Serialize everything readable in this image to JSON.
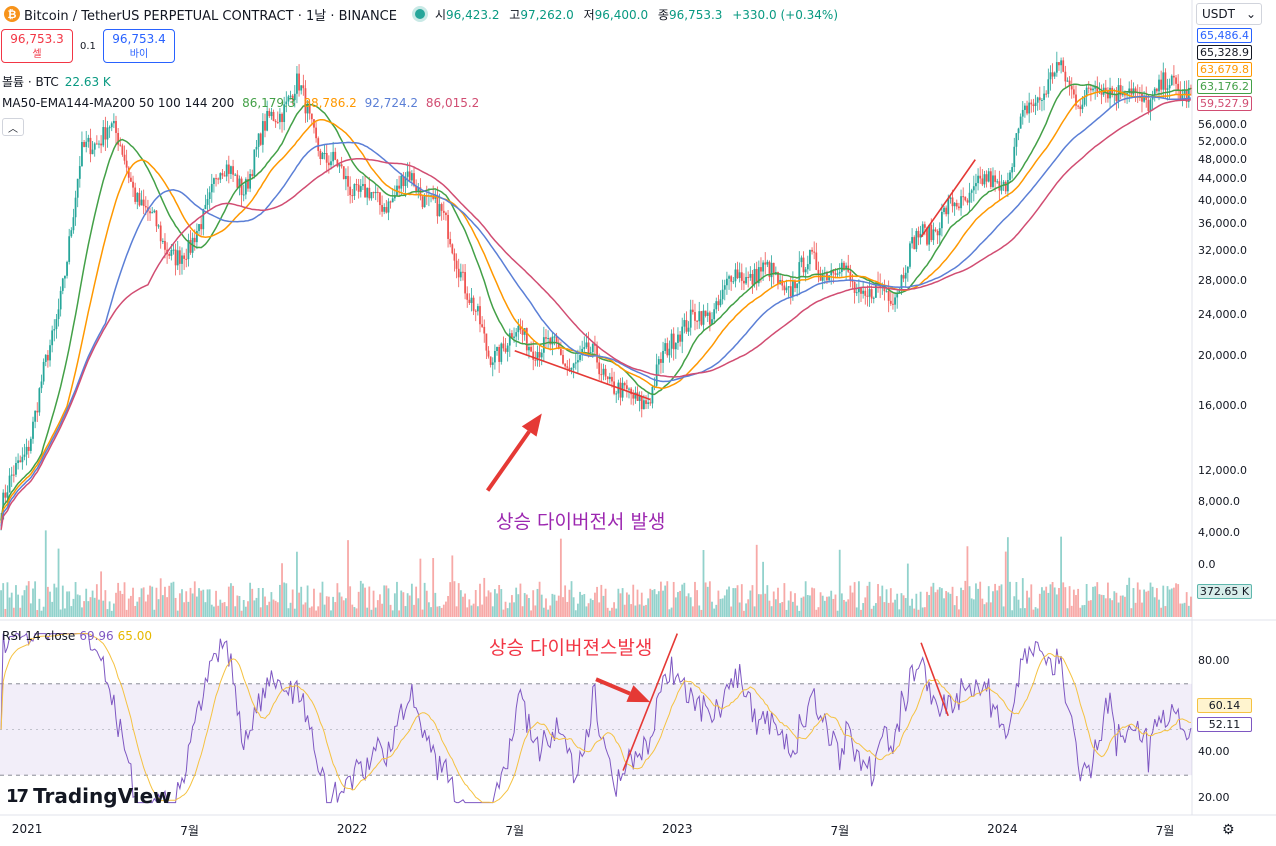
{
  "header": {
    "symbol_title": "Bitcoin / TetherUS PERPETUAL CONTRACT · 1날 · BINANCE",
    "ohlc": [
      {
        "label": "시",
        "value": "96,423.2"
      },
      {
        "label": "고",
        "value": "97,262.0"
      },
      {
        "label": "저",
        "value": "96,400.0"
      },
      {
        "label": "종",
        "value": "96,753.3"
      },
      {
        "label": "",
        "value": "+330.0 (+0.34%)"
      }
    ],
    "logo_glyph": "₿"
  },
  "trade": {
    "sell_price": "96,753.3",
    "sell_label": "셀",
    "spread": "0.1",
    "buy_price": "96,753.4",
    "buy_label": "바이"
  },
  "volume_label": {
    "name": "볼륨 · BTC",
    "value": "22.63 K"
  },
  "ma_label": {
    "name": "MA50-EMA144-MA200 50 100 144 200",
    "values": [
      {
        "v": "86,179.3",
        "color": "#43a047"
      },
      {
        "v": "88,786.2",
        "color": "#ff9800"
      },
      {
        "v": "92,724.2",
        "color": "#5b7fd6"
      },
      {
        "v": "86,015.2",
        "color": "#d14d72"
      }
    ]
  },
  "rsi_label": {
    "name": "RSI 14 close",
    "value_rsi": "69.96",
    "value_ma": "65.00"
  },
  "annotations": {
    "price": "상승 다이버전서 발생",
    "rsi": "상승 다이버젼스발생"
  },
  "brand": {
    "mark": "17",
    "name": "TradingView"
  },
  "currency": {
    "label": "USDT",
    "chevron": "chevron-down"
  },
  "chart_data": {
    "type": "candlestick",
    "x_range": [
      "2020-12",
      "2024-07"
    ],
    "x_ticks": [
      {
        "label": "2021",
        "date": "2021-01"
      },
      {
        "label": "7월",
        "date": "2021-07"
      },
      {
        "label": "2022",
        "date": "2022-01"
      },
      {
        "label": "7월",
        "date": "2022-07"
      },
      {
        "label": "2023",
        "date": "2023-01"
      },
      {
        "label": "7월",
        "date": "2023-07"
      },
      {
        "label": "2024",
        "date": "2024-01"
      },
      {
        "label": "7월",
        "date": "2024-07"
      }
    ],
    "price_scale": "log",
    "price_ticks": [
      "56,000.0",
      "52,000.0",
      "48,000.0",
      "44,000.0",
      "40,000.0",
      "36,000.0",
      "32,000.0",
      "28,000.0",
      "24,000.0",
      "20,000.0",
      "16,000.0",
      "12,000.0"
    ],
    "volume_ticks": [
      "8,000.0",
      "4,000.0",
      "0.0"
    ],
    "volume_last": "372.65 K",
    "rsi_ticks": [
      "80.00",
      "40.00",
      "20.00"
    ],
    "rsi_band": [
      30,
      70
    ],
    "rsi_mid": 50,
    "rsi_last": "52.11",
    "rsi_ma_last": "60.14",
    "last_value_tags": [
      {
        "value": "65,486.4",
        "color": "#2962ff"
      },
      {
        "value": "65,328.9",
        "color": "#131722"
      },
      {
        "value": "63,679.8",
        "color": "#ff9800"
      },
      {
        "value": "63,176.2",
        "color": "#43a047"
      },
      {
        "value": "59,527.9",
        "color": "#d14d72"
      }
    ],
    "price_series": [
      {
        "date": "2020-12",
        "value": 10000
      },
      {
        "date": "2021-01",
        "value": 13500
      },
      {
        "date": "2021-02",
        "value": 22000
      },
      {
        "date": "2021-03",
        "value": 48000
      },
      {
        "date": "2021-04",
        "value": 57000
      },
      {
        "date": "2021-05",
        "value": 42000
      },
      {
        "date": "2021-06",
        "value": 33000
      },
      {
        "date": "2021-07",
        "value": 31000
      },
      {
        "date": "2021-08",
        "value": 46000
      },
      {
        "date": "2021-09",
        "value": 43000
      },
      {
        "date": "2021-10",
        "value": 58000
      },
      {
        "date": "2021-11",
        "value": 66000
      },
      {
        "date": "2021-12",
        "value": 48000
      },
      {
        "date": "2022-01",
        "value": 43000
      },
      {
        "date": "2022-02",
        "value": 39000
      },
      {
        "date": "2022-03",
        "value": 44000
      },
      {
        "date": "2022-04",
        "value": 40000
      },
      {
        "date": "2022-05",
        "value": 30000
      },
      {
        "date": "2022-06",
        "value": 20000
      },
      {
        "date": "2022-07",
        "value": 22000
      },
      {
        "date": "2022-08",
        "value": 21000
      },
      {
        "date": "2022-09",
        "value": 19500
      },
      {
        "date": "2022-10",
        "value": 19800
      },
      {
        "date": "2022-11",
        "value": 16500
      },
      {
        "date": "2022-12",
        "value": 16800
      },
      {
        "date": "2023-01",
        "value": 23000
      },
      {
        "date": "2023-02",
        "value": 23500
      },
      {
        "date": "2023-03",
        "value": 28000
      },
      {
        "date": "2023-04",
        "value": 29500
      },
      {
        "date": "2023-05",
        "value": 27000
      },
      {
        "date": "2023-06",
        "value": 30500
      },
      {
        "date": "2023-07",
        "value": 29200
      },
      {
        "date": "2023-08",
        "value": 26000
      },
      {
        "date": "2023-09",
        "value": 27000
      },
      {
        "date": "2023-10",
        "value": 34500
      },
      {
        "date": "2023-11",
        "value": 37700
      },
      {
        "date": "2023-12",
        "value": 42500
      },
      {
        "date": "2024-01",
        "value": 43000
      },
      {
        "date": "2024-02",
        "value": 61000
      },
      {
        "date": "2024-03",
        "value": 71000
      },
      {
        "date": "2024-04",
        "value": 63000
      },
      {
        "date": "2024-05",
        "value": 67500
      },
      {
        "date": "2024-06",
        "value": 62500
      },
      {
        "date": "2024-07",
        "value": 66000
      }
    ],
    "moving_averages": [
      {
        "color": "#43a047"
      },
      {
        "color": "#ff9800"
      },
      {
        "color": "#5b7fd6"
      },
      {
        "color": "#d14d72"
      }
    ],
    "trendlines": [
      {
        "pane": "price",
        "color": "#e53935",
        "from": {
          "date": "2022-07",
          "value": 20500
        },
        "to": {
          "date": "2022-12",
          "value": 16500
        }
      },
      {
        "pane": "price",
        "color": "#e53935",
        "from": {
          "date": "2023-10",
          "value": 34000
        },
        "to": {
          "date": "2023-12",
          "value": 48000
        }
      },
      {
        "pane": "rsi",
        "color": "#e53935",
        "from": {
          "date": "2022-11",
          "value": 32
        },
        "to": {
          "date": "2023-01",
          "value": 92
        }
      },
      {
        "pane": "rsi",
        "color": "#e53935",
        "from": {
          "date": "2023-10",
          "value": 88
        },
        "to": {
          "date": "2023-11",
          "value": 56
        }
      }
    ],
    "arrows": [
      {
        "pane": "price",
        "color": "#e53935",
        "from": {
          "date": "2022-06",
          "value": 11000
        },
        "to": {
          "date": "2022-08",
          "value": 15500
        }
      },
      {
        "pane": "rsi",
        "color": "#e53935",
        "from": {
          "date": "2022-10",
          "value": 72
        },
        "to": {
          "date": "2022-12",
          "value": 62
        }
      }
    ]
  }
}
